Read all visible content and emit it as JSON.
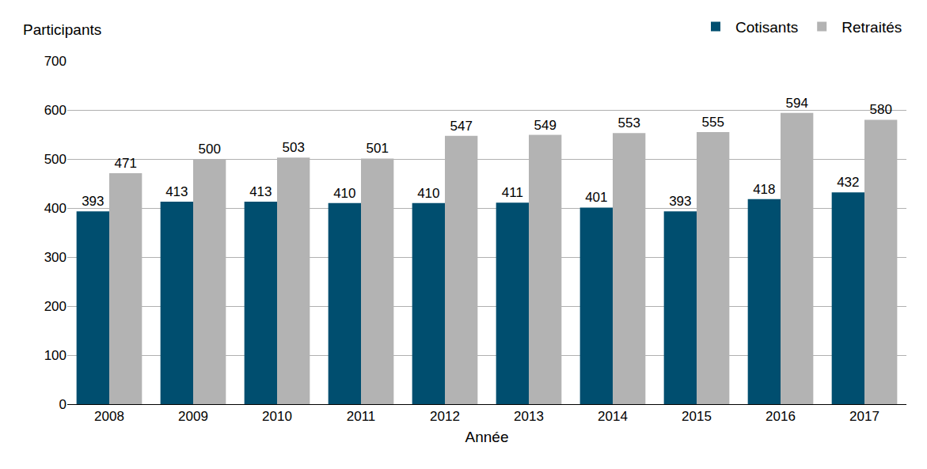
{
  "chart_data": {
    "type": "bar",
    "y_label": "Participants",
    "x_label": "Année",
    "categories": [
      "2008",
      "2009",
      "2010",
      "2011",
      "2012",
      "2013",
      "2014",
      "2015",
      "2016",
      "2017"
    ],
    "series": [
      {
        "name": "Cotisants",
        "color": "#004e6f",
        "values": [
          393,
          413,
          413,
          410,
          410,
          411,
          401,
          393,
          418,
          432
        ]
      },
      {
        "name": "Retraités",
        "color": "#b3b3b3",
        "values": [
          471,
          500,
          503,
          501,
          547,
          549,
          553,
          555,
          594,
          580
        ]
      }
    ],
    "ylim": [
      0,
      700
    ],
    "yticks": [
      0,
      100,
      200,
      300,
      400,
      500,
      600,
      700
    ],
    "grid": true,
    "legend": "top right",
    "data_labels": true
  }
}
